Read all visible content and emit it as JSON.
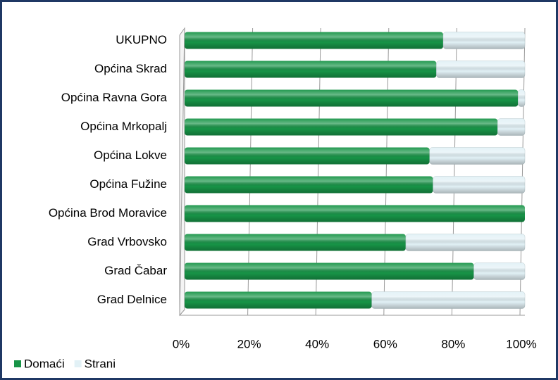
{
  "chart_data": {
    "type": "bar",
    "orientation": "horizontal",
    "stacked": true,
    "categories": [
      "UKUPNO",
      "Općina Skrad",
      "Općina Ravna Gora",
      "Općina Mrkopalj",
      "Općina Lokve",
      "Općina Fužine",
      "Općina Brod Moravice",
      "Grad Vrbovsko",
      "Grad Čabar",
      "Grad Delnice"
    ],
    "series": [
      {
        "name": "Domaći",
        "color": "#179447",
        "values": [
          76,
          74,
          98,
          92,
          72,
          73,
          100,
          65,
          85,
          55
        ]
      },
      {
        "name": "Strani",
        "color": "#e2f1f6",
        "values": [
          24,
          26,
          2,
          8,
          28,
          27,
          0,
          35,
          15,
          45
        ]
      }
    ],
    "xlim": [
      0,
      100
    ],
    "xticks": [
      {
        "value": 0,
        "label": "0%"
      },
      {
        "value": 20,
        "label": "20%"
      },
      {
        "value": 40,
        "label": "40%"
      },
      {
        "value": 60,
        "label": "60%"
      },
      {
        "value": 80,
        "label": "80%"
      },
      {
        "value": 100,
        "label": "100%"
      }
    ],
    "grid": true,
    "legend": "bottom-left"
  }
}
